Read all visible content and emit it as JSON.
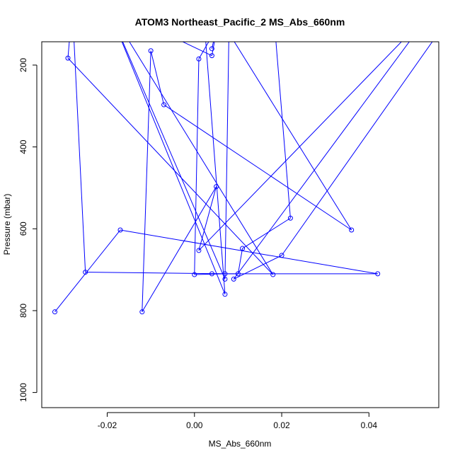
{
  "chart_data": {
    "type": "line",
    "title": "ATOM3 Northeast_Pacific_2 MS_Abs_660nm",
    "xlabel": "MS_Abs_660nm",
    "ylabel": "Pressure (mbar)",
    "xlim": [
      -0.035,
      0.056
    ],
    "ylim": [
      1037,
      143
    ],
    "y_inverted": true,
    "x_ticks": [
      -0.02,
      0.0,
      0.02,
      0.04
    ],
    "x_tick_labels": [
      "-0.02",
      "0.00",
      "0.02",
      "0.04"
    ],
    "y_ticks": [
      200,
      400,
      600,
      800,
      1000
    ],
    "y_tick_labels": [
      "200",
      "400",
      "600",
      "800",
      "1000"
    ],
    "grid": false,
    "series": [
      {
        "color": "#0000ff",
        "marker": "open-circle",
        "points": [
          {
            "x": -0.032,
            "y": 803
          },
          {
            "x": -0.017,
            "y": 603
          },
          {
            "x": 0.042,
            "y": 710
          },
          {
            "x": 0.004,
            "y": 710
          },
          {
            "x": 0.01,
            "y": 710
          },
          {
            "x": 0.011,
            "y": 648
          },
          {
            "x": 0.022,
            "y": 574
          },
          {
            "x": 0.018,
            "y": 55
          },
          {
            "x": 0.004,
            "y": 55
          },
          {
            "x": 0.036,
            "y": 603
          },
          {
            "x": -0.007,
            "y": 297
          },
          {
            "x": -0.01,
            "y": 165
          },
          {
            "x": -0.012,
            "y": 803
          },
          {
            "x": 0.005,
            "y": 497
          },
          {
            "x": 0.001,
            "y": 653
          },
          {
            "x": 0.055,
            "y": 60
          },
          {
            "x": 0.009,
            "y": 723
          },
          {
            "x": 0.02,
            "y": 665
          },
          {
            "x": 0.06,
            "y": 60
          },
          {
            "x": 0.002,
            "y": 60
          },
          {
            "x": 0.007,
            "y": 760
          },
          {
            "x": -0.02,
            "y": 55
          },
          {
            "x": 0.018,
            "y": 712
          },
          {
            "x": -0.029,
            "y": 183
          },
          {
            "x": -0.028,
            "y": 55
          },
          {
            "x": -0.025,
            "y": 706
          },
          {
            "x": 0.007,
            "y": 710
          },
          {
            "x": 0.0,
            "y": 712
          },
          {
            "x": 0.001,
            "y": 185
          },
          {
            "x": 0.008,
            "y": 55
          },
          {
            "x": 0.007,
            "y": 723
          },
          {
            "x": -0.02,
            "y": 55
          },
          {
            "x": 0.004,
            "y": 177
          },
          {
            "x": 0.006,
            "y": 60
          },
          {
            "x": 0.004,
            "y": 160
          }
        ]
      }
    ]
  }
}
